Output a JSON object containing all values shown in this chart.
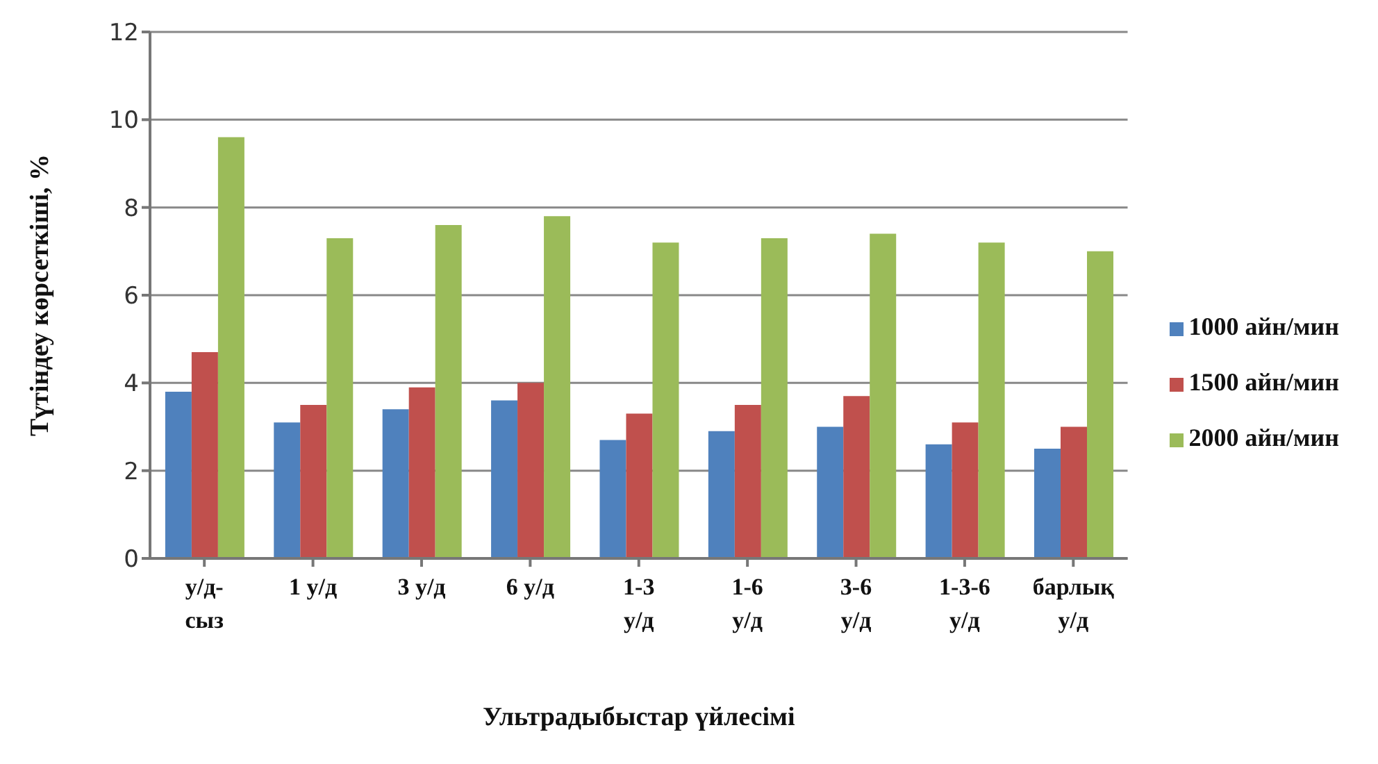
{
  "chart_data": {
    "type": "bar",
    "xlabel": "Ультрадыбыстар үйлесімі",
    "ylabel": "Түтіндеу көрсеткіші, %",
    "categories": [
      "у/д-\nсыз",
      "1 у/д",
      "3 у/д",
      "6 у/д",
      "1-3\nу/д",
      "1-6\nу/д",
      "3-6\nу/д",
      "1-3-6\nу/д",
      "барлық\nу/д"
    ],
    "series": [
      {
        "name": "1000 айн/мин",
        "color": "#4f81bd",
        "values": [
          3.8,
          3.1,
          3.4,
          3.6,
          2.7,
          2.9,
          3.0,
          2.6,
          2.5
        ]
      },
      {
        "name": "1500 айн/мин",
        "color": "#c0504d",
        "values": [
          4.7,
          3.5,
          3.9,
          4.0,
          3.3,
          3.5,
          3.7,
          3.1,
          3.0
        ]
      },
      {
        "name": "2000 айн/мин",
        "color": "#9bbb59",
        "values": [
          9.6,
          7.3,
          7.6,
          7.8,
          7.2,
          7.3,
          7.4,
          7.2,
          7.0
        ]
      }
    ],
    "ylim": [
      0,
      12
    ],
    "yticks": [
      0,
      2,
      4,
      6,
      8,
      10,
      12
    ],
    "grid": "y",
    "legend": "right"
  }
}
